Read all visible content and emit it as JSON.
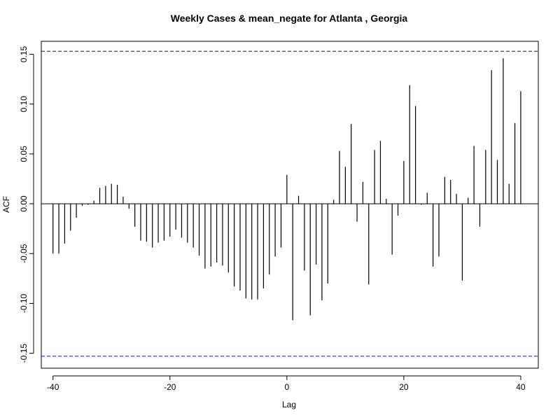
{
  "chart_data": {
    "type": "bar",
    "title": "Weekly Cases & mean_negate for Atlanta , Georgia",
    "xlabel": "Lag",
    "ylabel": "ACF",
    "xlim": [
      -42,
      43
    ],
    "ylim": [
      -0.165,
      0.163
    ],
    "x_ticks": [
      -40,
      -20,
      0,
      20,
      40
    ],
    "x_tick_labels": [
      "-40",
      "-20",
      "0",
      "20",
      "40"
    ],
    "y_ticks": [
      -0.15,
      -0.1,
      -0.05,
      0.0,
      0.05,
      0.1,
      0.15
    ],
    "y_tick_labels": [
      "-0.15",
      "-0.10",
      "-0.05",
      "0.00",
      "0.05",
      "0.10",
      "0.15"
    ],
    "confidence_bound": 0.153,
    "zero_line": true,
    "colors": {
      "bars": "#000000",
      "confidence": "#0000cc",
      "frame": "#000000"
    },
    "lags": [
      -40,
      -39,
      -38,
      -37,
      -36,
      -35,
      -34,
      -33,
      -32,
      -31,
      -30,
      -29,
      -28,
      -27,
      -26,
      -25,
      -24,
      -23,
      -22,
      -21,
      -20,
      -19,
      -18,
      -17,
      -16,
      -15,
      -14,
      -13,
      -12,
      -11,
      -10,
      -9,
      -8,
      -7,
      -6,
      -5,
      -4,
      -3,
      -2,
      -1,
      0,
      1,
      2,
      3,
      4,
      5,
      6,
      7,
      8,
      9,
      10,
      11,
      12,
      13,
      14,
      15,
      16,
      17,
      18,
      19,
      20,
      21,
      22,
      23,
      24,
      25,
      26,
      27,
      28,
      29,
      30,
      31,
      32,
      33,
      34,
      35,
      36,
      37,
      38,
      39,
      40
    ],
    "values": [
      -0.05,
      -0.05,
      -0.04,
      -0.027,
      -0.014,
      -0.002,
      -0.001,
      0.003,
      0.016,
      0.018,
      0.02,
      0.019,
      0.007,
      -0.005,
      -0.023,
      -0.037,
      -0.038,
      -0.044,
      -0.039,
      -0.037,
      -0.033,
      -0.026,
      -0.034,
      -0.039,
      -0.044,
      -0.052,
      -0.065,
      -0.063,
      -0.059,
      -0.062,
      -0.069,
      -0.083,
      -0.087,
      -0.095,
      -0.096,
      -0.096,
      -0.085,
      -0.071,
      -0.053,
      -0.044,
      0.029,
      -0.117,
      0.008,
      -0.067,
      -0.112,
      -0.061,
      -0.097,
      -0.08,
      0.004,
      0.053,
      0.037,
      0.08,
      -0.018,
      0.022,
      -0.081,
      0.054,
      0.063,
      0.005,
      -0.051,
      -0.012,
      0.043,
      0.119,
      0.098,
      -0.001,
      0.011,
      -0.063,
      -0.053,
      0.027,
      0.024,
      0.01,
      -0.077,
      0.006,
      0.058,
      -0.023,
      0.054,
      0.134,
      0.044,
      0.146,
      0.02,
      0.081,
      0.113
    ]
  }
}
